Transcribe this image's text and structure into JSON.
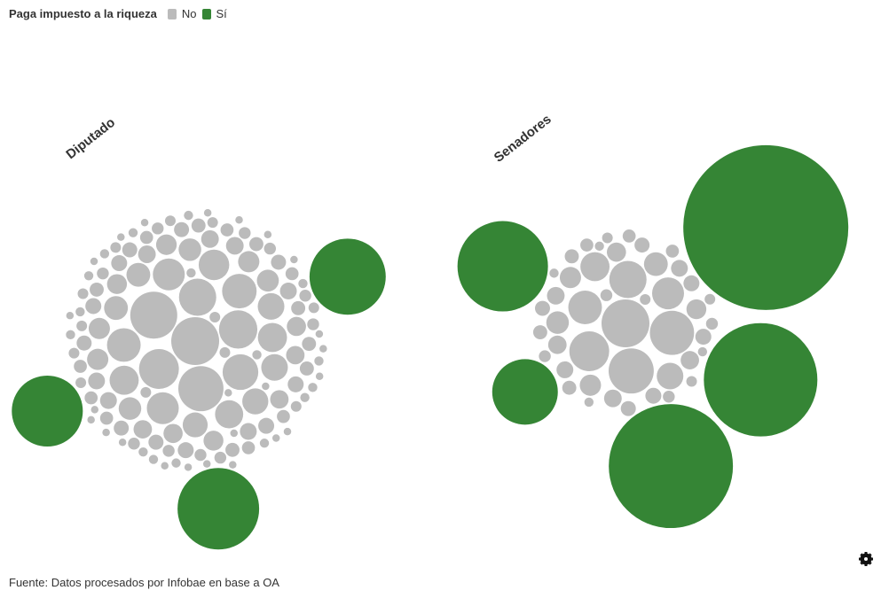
{
  "chart_data": {
    "type": "packed-bubble",
    "legend_title": "Paga impuesto a la riqueza",
    "series": [
      {
        "name": "No",
        "color": "#bbbbbb"
      },
      {
        "name": "Sí",
        "color": "#358535"
      }
    ],
    "source": "Fuente: Datos procesados por Infobae en base a OA",
    "groups": [
      {
        "name": "Diputado",
        "no": [
          81,
          78,
          72,
          56,
          52,
          49,
          45,
          42,
          40,
          36,
          36,
          33,
          30,
          30,
          28,
          25,
          25,
          24,
          22,
          20,
          20,
          18,
          18,
          17,
          16,
          16,
          16,
          15,
          14,
          14,
          13,
          13,
          12,
          12,
          12,
          11,
          11,
          11,
          10,
          10,
          10,
          10,
          9,
          9,
          9,
          9,
          9,
          8,
          8,
          8,
          8,
          8,
          8,
          7,
          7,
          7,
          7,
          7,
          7,
          7,
          6,
          6,
          6,
          6,
          6,
          6,
          6,
          6,
          5,
          5,
          5,
          5,
          5,
          5,
          5,
          5,
          5,
          5,
          4,
          4,
          4,
          4,
          4,
          4,
          4,
          4,
          4,
          4,
          4,
          4,
          3,
          3,
          3,
          3,
          3,
          3,
          3,
          3,
          3,
          3,
          3,
          3,
          3,
          3,
          3,
          3,
          2,
          2,
          2,
          2,
          2,
          2,
          2,
          2,
          2,
          2,
          2,
          2,
          2,
          2,
          2,
          2,
          2,
          2,
          2,
          2,
          2,
          2,
          2,
          2
        ],
        "si": [
          235,
          205,
          178
        ]
      },
      {
        "name": "Senadores",
        "no": [
          81,
          72,
          69,
          56,
          49,
          40,
          36,
          30,
          25,
          20,
          18,
          16,
          16,
          14,
          13,
          12,
          12,
          11,
          11,
          10,
          10,
          9,
          9,
          9,
          8,
          8,
          8,
          7,
          7,
          7,
          6,
          6,
          6,
          5,
          5,
          5,
          5,
          4,
          4,
          4,
          4,
          3,
          3,
          3,
          3
        ],
        "si": [
          961,
          544,
          455,
          289,
          152
        ]
      }
    ]
  }
}
